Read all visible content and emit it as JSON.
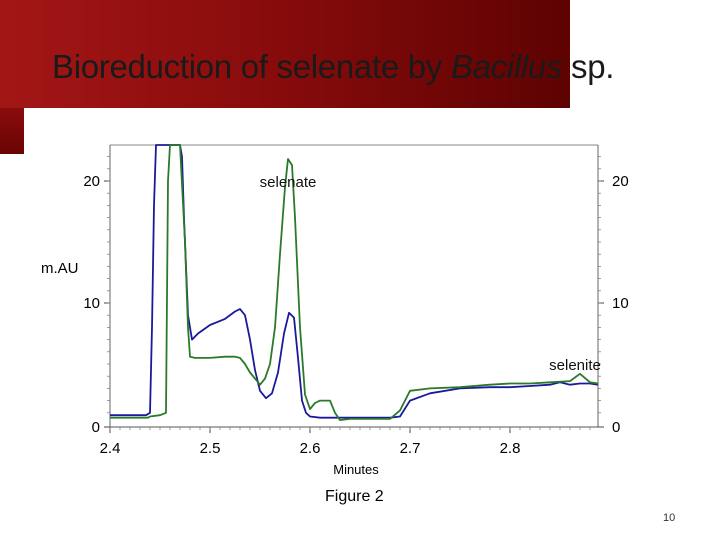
{
  "slide": {
    "title_prefix": "Bioreduction of selenate by ",
    "title_italic": "Bacillus",
    "title_suffix": " sp.",
    "caption": "Figure 2",
    "slide_number": "10"
  },
  "colors": {
    "band": "#8a0c0c",
    "series_blue": "#1a1a9a",
    "series_green": "#2a7a2a"
  },
  "chart_data": {
    "type": "line",
    "xlabel": "Minutes",
    "ylabel": "m.AU",
    "xlim": [
      2.4,
      2.9
    ],
    "ylim": [
      0,
      23
    ],
    "x_ticks": [
      2.4,
      2.5,
      2.6,
      2.7,
      2.8
    ],
    "y_ticks": [
      0,
      10,
      20
    ],
    "grid": false,
    "annotations": [
      {
        "text": "selenate",
        "x": 2.578,
        "y": 19.5
      },
      {
        "text": "selenite",
        "x": 2.865,
        "y": 4.5
      }
    ],
    "series": [
      {
        "color": "blue",
        "x": [
          2.4,
          2.436,
          2.44,
          2.442,
          2.444,
          2.446,
          2.448,
          2.47,
          2.472,
          2.474,
          2.478,
          2.482,
          2.488,
          2.5,
          2.515,
          2.525,
          2.53,
          2.535,
          2.54,
          2.545,
          2.55,
          2.556,
          2.562,
          2.568,
          2.574,
          2.579,
          2.584,
          2.588,
          2.592,
          2.596,
          2.6,
          2.61,
          2.62,
          2.63,
          2.64,
          2.65,
          2.66,
          2.67,
          2.68,
          2.69,
          2.7,
          2.72,
          2.75,
          2.78,
          2.8,
          2.82,
          2.84,
          2.85,
          2.86,
          2.87,
          2.88,
          2.9
        ],
        "y": [
          0.8,
          0.8,
          1.0,
          8.0,
          18.0,
          23.0,
          23.0,
          23.0,
          22.0,
          17.0,
          9.0,
          7.0,
          7.5,
          8.2,
          8.7,
          9.3,
          9.5,
          9.0,
          7.0,
          4.5,
          2.8,
          2.2,
          2.6,
          4.3,
          7.5,
          9.2,
          8.8,
          5.5,
          2.0,
          1.0,
          0.7,
          0.6,
          0.6,
          0.6,
          0.6,
          0.6,
          0.6,
          0.6,
          0.6,
          0.7,
          2.0,
          2.6,
          3.0,
          3.1,
          3.1,
          3.2,
          3.3,
          3.5,
          3.3,
          3.4,
          3.4,
          3.3
        ]
      },
      {
        "color": "green",
        "x": [
          2.4,
          2.438,
          2.44,
          2.45,
          2.456,
          2.458,
          2.46,
          2.466,
          2.47,
          2.475,
          2.478,
          2.48,
          2.485,
          2.5,
          2.515,
          2.525,
          2.53,
          2.535,
          2.54,
          2.545,
          2.55,
          2.555,
          2.56,
          2.565,
          2.57,
          2.575,
          2.578,
          2.582,
          2.585,
          2.59,
          2.595,
          2.6,
          2.605,
          2.61,
          2.62,
          2.625,
          2.63,
          2.64,
          2.65,
          2.66,
          2.67,
          2.68,
          2.69,
          2.7,
          2.72,
          2.75,
          2.78,
          2.8,
          2.82,
          2.84,
          2.86,
          2.87,
          2.88,
          2.9
        ],
        "y": [
          0.6,
          0.6,
          0.7,
          0.8,
          1.0,
          20.0,
          23.0,
          23.0,
          23.0,
          15.0,
          8.0,
          5.6,
          5.5,
          5.5,
          5.6,
          5.6,
          5.5,
          5.0,
          4.3,
          3.8,
          3.3,
          3.8,
          5.0,
          8.0,
          14.0,
          19.5,
          21.8,
          21.3,
          17.0,
          8.0,
          2.5,
          1.3,
          1.8,
          2.0,
          2.0,
          1.0,
          0.4,
          0.5,
          0.5,
          0.5,
          0.5,
          0.5,
          1.2,
          2.8,
          3.0,
          3.1,
          3.3,
          3.4,
          3.4,
          3.5,
          3.6,
          4.2,
          3.5,
          3.4
        ]
      }
    ]
  }
}
